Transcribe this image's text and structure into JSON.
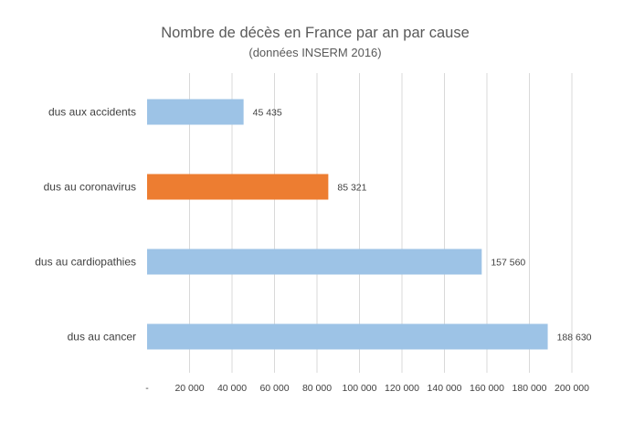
{
  "chart_data": {
    "type": "bar",
    "orientation": "horizontal",
    "title": "Nombre de décès en France par an par cause",
    "subtitle": "(données INSERM 2016)",
    "categories": [
      "dus aux accidents",
      "dus au coronavirus",
      "dus au cardiopathies",
      "dus au cancer"
    ],
    "values": [
      45435,
      85321,
      157560,
      188630
    ],
    "value_labels": [
      "45 435",
      "85 321",
      "157 560",
      "188 630"
    ],
    "bar_colors": [
      "#9dc3e6",
      "#ed7d31",
      "#9dc3e6",
      "#9dc3e6"
    ],
    "highlight_category": "dus au coronavirus",
    "xlim": [
      0,
      200000
    ],
    "x_ticks": [
      0,
      20000,
      40000,
      60000,
      80000,
      100000,
      120000,
      140000,
      160000,
      180000,
      200000
    ],
    "x_tick_labels": [
      "-",
      "20 000",
      "40 000",
      "60 000",
      "80 000",
      "100 000",
      "120 000",
      "140 000",
      "160 000",
      "180 000",
      "200 000"
    ],
    "grid": "vertical",
    "legend": "none",
    "xlabel": "",
    "ylabel": ""
  }
}
